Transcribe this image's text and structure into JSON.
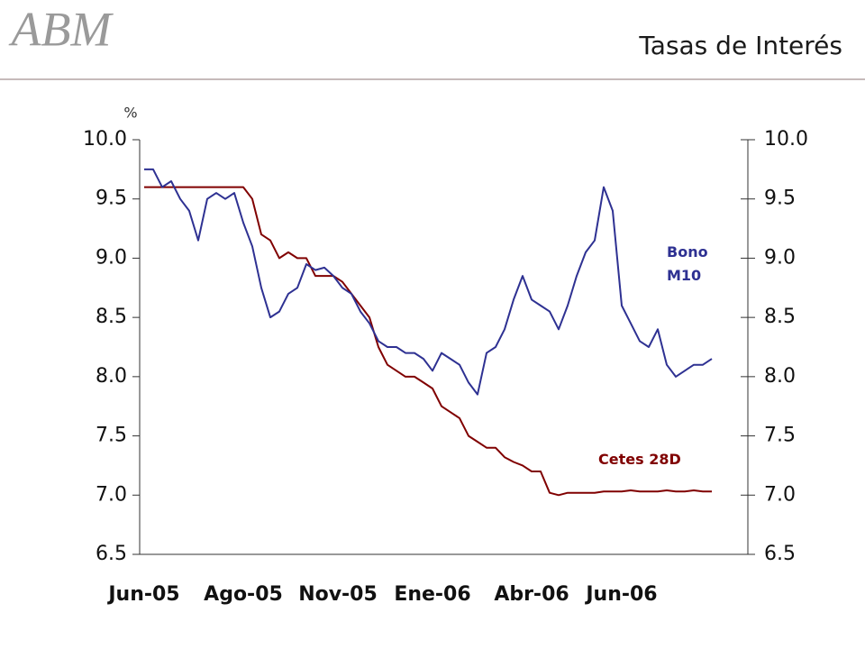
{
  "logo": "ABM",
  "chart_data": {
    "type": "line",
    "title": "Tasas de Interés",
    "ylabel": "%",
    "xlim": [
      -0.5,
      67
    ],
    "xticks": [
      {
        "value": 0,
        "label": "Jun-05"
      },
      {
        "value": 11,
        "label": "Ago-05"
      },
      {
        "value": 21.5,
        "label": "Nov-05"
      },
      {
        "value": 32,
        "label": "Ene-06"
      },
      {
        "value": 43,
        "label": "Abr-06"
      },
      {
        "value": 53,
        "label": "Jun-06"
      }
    ],
    "ylim": [
      6.5,
      10.0
    ],
    "yticks": [
      {
        "value": 6.5,
        "label": "6.5"
      },
      {
        "value": 7.0,
        "label": "7.0"
      },
      {
        "value": 7.5,
        "label": "7.5"
      },
      {
        "value": 8.0,
        "label": "8.0"
      },
      {
        "value": 8.5,
        "label": "8.5"
      },
      {
        "value": 9.0,
        "label": "9.0"
      },
      {
        "value": 9.5,
        "label": "9.5"
      },
      {
        "value": 10.0,
        "label": "10.0"
      }
    ],
    "y2lim": [
      6.5,
      10.0
    ],
    "y2ticks": [
      {
        "value": 6.5,
        "label": "6.5"
      },
      {
        "value": 7.0,
        "label": "7.0"
      },
      {
        "value": 7.5,
        "label": "7.5"
      },
      {
        "value": 8.0,
        "label": "8.0"
      },
      {
        "value": 8.5,
        "label": "8.5"
      },
      {
        "value": 9.0,
        "label": "9.0"
      },
      {
        "value": 9.5,
        "label": "9.5"
      },
      {
        "value": 10.0,
        "label": "10.0"
      }
    ],
    "series": [
      {
        "name": "Bono M10",
        "color": "#2e3192",
        "values": [
          9.75,
          9.75,
          9.6,
          9.65,
          9.5,
          9.4,
          9.15,
          9.5,
          9.55,
          9.5,
          9.55,
          9.3,
          9.1,
          8.75,
          8.5,
          8.55,
          8.7,
          8.75,
          8.95,
          8.9,
          8.92,
          8.85,
          8.75,
          8.7,
          8.55,
          8.45,
          8.3,
          8.25,
          8.25,
          8.2,
          8.2,
          8.15,
          8.05,
          8.2,
          8.15,
          8.1,
          7.95,
          7.85,
          8.2,
          8.25,
          8.4,
          8.65,
          8.85,
          8.65,
          8.6,
          8.55,
          8.4,
          8.6,
          8.85,
          9.05,
          9.15,
          9.6,
          9.4,
          8.6,
          8.45,
          8.3,
          8.25,
          8.4,
          8.1,
          8.0,
          8.05,
          8.1,
          8.1,
          8.15
        ]
      },
      {
        "name": "Cetes 28D",
        "color": "#800000",
        "values": [
          9.6,
          9.6,
          9.6,
          9.6,
          9.6,
          9.6,
          9.6,
          9.6,
          9.6,
          9.6,
          9.6,
          9.6,
          9.5,
          9.2,
          9.15,
          9.0,
          9.05,
          9.0,
          9.0,
          8.85,
          8.85,
          8.85,
          8.8,
          8.7,
          8.6,
          8.5,
          8.25,
          8.1,
          8.05,
          8.0,
          8.0,
          7.95,
          7.9,
          7.75,
          7.7,
          7.65,
          7.5,
          7.45,
          7.4,
          7.4,
          7.32,
          7.28,
          7.25,
          7.2,
          7.2,
          7.02,
          7.0,
          7.02,
          7.02,
          7.02,
          7.02,
          7.03,
          7.03,
          7.03,
          7.04,
          7.03,
          7.03,
          7.03,
          7.04,
          7.03,
          7.03,
          7.04,
          7.03,
          7.03
        ]
      }
    ]
  }
}
